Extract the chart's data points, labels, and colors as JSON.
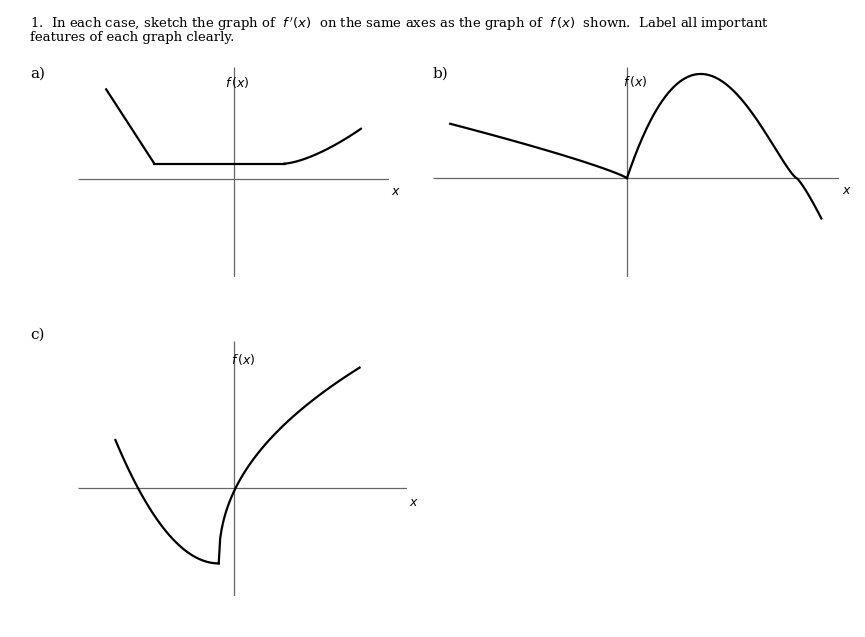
{
  "background": "#ffffff",
  "text_color": "#000000",
  "header_line1": "1.  In each case, sketch the graph of  f ′(x)  on the same axes as the graph of  f (x)  shown.  Label all important",
  "header_line2": "features of each graph clearly.",
  "label_a": "a)",
  "label_b": "b)",
  "label_c": "c)",
  "graph_lw": 1.6,
  "axis_lw": 0.9,
  "axis_color": "#666666"
}
